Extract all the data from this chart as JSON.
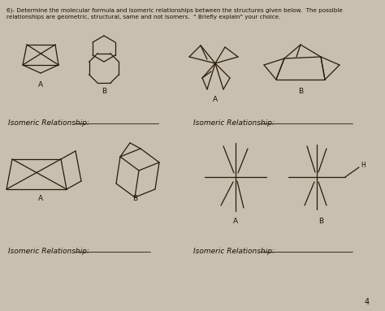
{
  "title_line1": "6)- Determine the molecular formula and isomeric relationships between the structures given below.  The possible",
  "title_line2": "relationships are geometric, structural, same and not isomers.  \" Briefly explain\" your choice.",
  "bg_color": "#c8bfb0",
  "paper_color": "#ddd5c5",
  "text_color": "#1a1008",
  "line_color": "#2a1a08",
  "isomeric_label": "Isomeric Relationship:",
  "page_number": "4"
}
